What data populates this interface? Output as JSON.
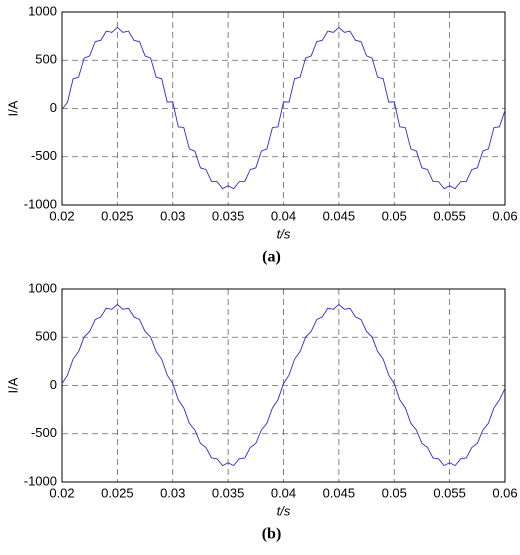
{
  "chart_data": [
    {
      "type": "line",
      "caption": "(a)",
      "xlabel": "t/s",
      "ylabel": "I/A",
      "grid": true,
      "xlim": [
        0.02,
        0.06
      ],
      "xticks": [
        0.02,
        0.025,
        0.03,
        0.035,
        0.04,
        0.045,
        0.05,
        0.055,
        0.06
      ],
      "ylim": [
        -1000,
        1000
      ],
      "yticks": [
        -1000,
        -500,
        0,
        500,
        1000
      ],
      "x": [
        0.02,
        0.0205,
        0.021,
        0.0215,
        0.022,
        0.0225,
        0.023,
        0.0235,
        0.024,
        0.0245,
        0.025,
        0.0255,
        0.026,
        0.0265,
        0.027,
        0.0275,
        0.028,
        0.0285,
        0.029,
        0.0295,
        0.03,
        0.0305,
        0.031,
        0.0315,
        0.032,
        0.0325,
        0.033,
        0.0335,
        0.034,
        0.0345,
        0.035,
        0.0355,
        0.036,
        0.0365,
        0.037,
        0.0375,
        0.038,
        0.0385,
        0.039,
        0.0395,
        0.04,
        0.0405,
        0.041,
        0.0415,
        0.042,
        0.0425,
        0.043,
        0.0435,
        0.044,
        0.0445,
        0.045,
        0.0455,
        0.046,
        0.0465,
        0.047,
        0.0475,
        0.048,
        0.0485,
        0.049,
        0.0495,
        0.05,
        0.0505,
        0.051,
        0.0515,
        0.052,
        0.0525,
        0.053,
        0.0535,
        0.054,
        0.0545,
        0.055,
        0.0555,
        0.056,
        0.0565,
        0.057,
        0.0575,
        0.058,
        0.0585,
        0.059,
        0.0595,
        0.06
      ],
      "series": [
        {
          "color": "#2b2bd6",
          "values": [
            -10,
            66,
            308,
            325,
            523,
            545,
            693,
            706,
            802,
            789,
            840,
            789,
            802,
            706,
            693,
            545,
            523,
            325,
            308,
            66,
            70,
            -190,
            -198,
            -419,
            -441,
            -615,
            -633,
            -756,
            -758,
            -831,
            -800,
            -831,
            -758,
            -756,
            -633,
            -615,
            -441,
            -419,
            -198,
            -190,
            70,
            66,
            308,
            325,
            523,
            545,
            693,
            706,
            802,
            789,
            840,
            789,
            802,
            706,
            693,
            545,
            523,
            325,
            308,
            66,
            70,
            -190,
            -198,
            -419,
            -441,
            -615,
            -633,
            -756,
            -758,
            -831,
            -800,
            -831,
            -758,
            -756,
            -633,
            -615,
            -441,
            -419,
            -198,
            -190,
            -20
          ]
        }
      ]
    },
    {
      "type": "line",
      "caption": "(b)",
      "xlabel": "t/s",
      "ylabel": "I/A",
      "grid": true,
      "xlim": [
        0.02,
        0.06
      ],
      "xticks": [
        0.02,
        0.025,
        0.03,
        0.035,
        0.04,
        0.045,
        0.05,
        0.055,
        0.06
      ],
      "ylim": [
        -1000,
        1000
      ],
      "yticks": [
        -1000,
        -500,
        0,
        500,
        1000
      ],
      "x": [
        0.02,
        0.0205,
        0.021,
        0.0215,
        0.022,
        0.0225,
        0.023,
        0.0235,
        0.024,
        0.0245,
        0.025,
        0.0255,
        0.026,
        0.0265,
        0.027,
        0.0275,
        0.028,
        0.0285,
        0.029,
        0.0295,
        0.03,
        0.0305,
        0.031,
        0.0315,
        0.032,
        0.0325,
        0.033,
        0.0335,
        0.034,
        0.0345,
        0.035,
        0.0355,
        0.036,
        0.0365,
        0.037,
        0.0375,
        0.038,
        0.0385,
        0.039,
        0.0395,
        0.04,
        0.0405,
        0.041,
        0.0415,
        0.042,
        0.0425,
        0.043,
        0.0435,
        0.044,
        0.0445,
        0.045,
        0.0455,
        0.046,
        0.0465,
        0.047,
        0.0475,
        0.048,
        0.0485,
        0.049,
        0.0495,
        0.05,
        0.0505,
        0.051,
        0.0515,
        0.052,
        0.0525,
        0.053,
        0.0535,
        0.054,
        0.0545,
        0.055,
        0.0555,
        0.056,
        0.0565,
        0.057,
        0.0575,
        0.058,
        0.0585,
        0.059,
        0.0595,
        0.06
      ],
      "series": [
        {
          "color": "#2b2bd6",
          "values": [
            20,
            108,
            273,
            352,
            502,
            560,
            683,
            711,
            800,
            790,
            840,
            790,
            800,
            711,
            683,
            560,
            502,
            352,
            273,
            108,
            20,
            -148,
            -233,
            -392,
            -462,
            -600,
            -643,
            -751,
            -760,
            -830,
            -800,
            -830,
            -760,
            -751,
            -643,
            -600,
            -462,
            -392,
            -233,
            -148,
            20,
            108,
            273,
            352,
            502,
            560,
            683,
            711,
            800,
            790,
            840,
            790,
            800,
            711,
            683,
            560,
            502,
            352,
            273,
            108,
            20,
            -148,
            -233,
            -392,
            -462,
            -600,
            -643,
            -751,
            -760,
            -830,
            -800,
            -830,
            -760,
            -751,
            -643,
            -600,
            -462,
            -392,
            -233,
            -148,
            -30
          ]
        }
      ]
    }
  ]
}
